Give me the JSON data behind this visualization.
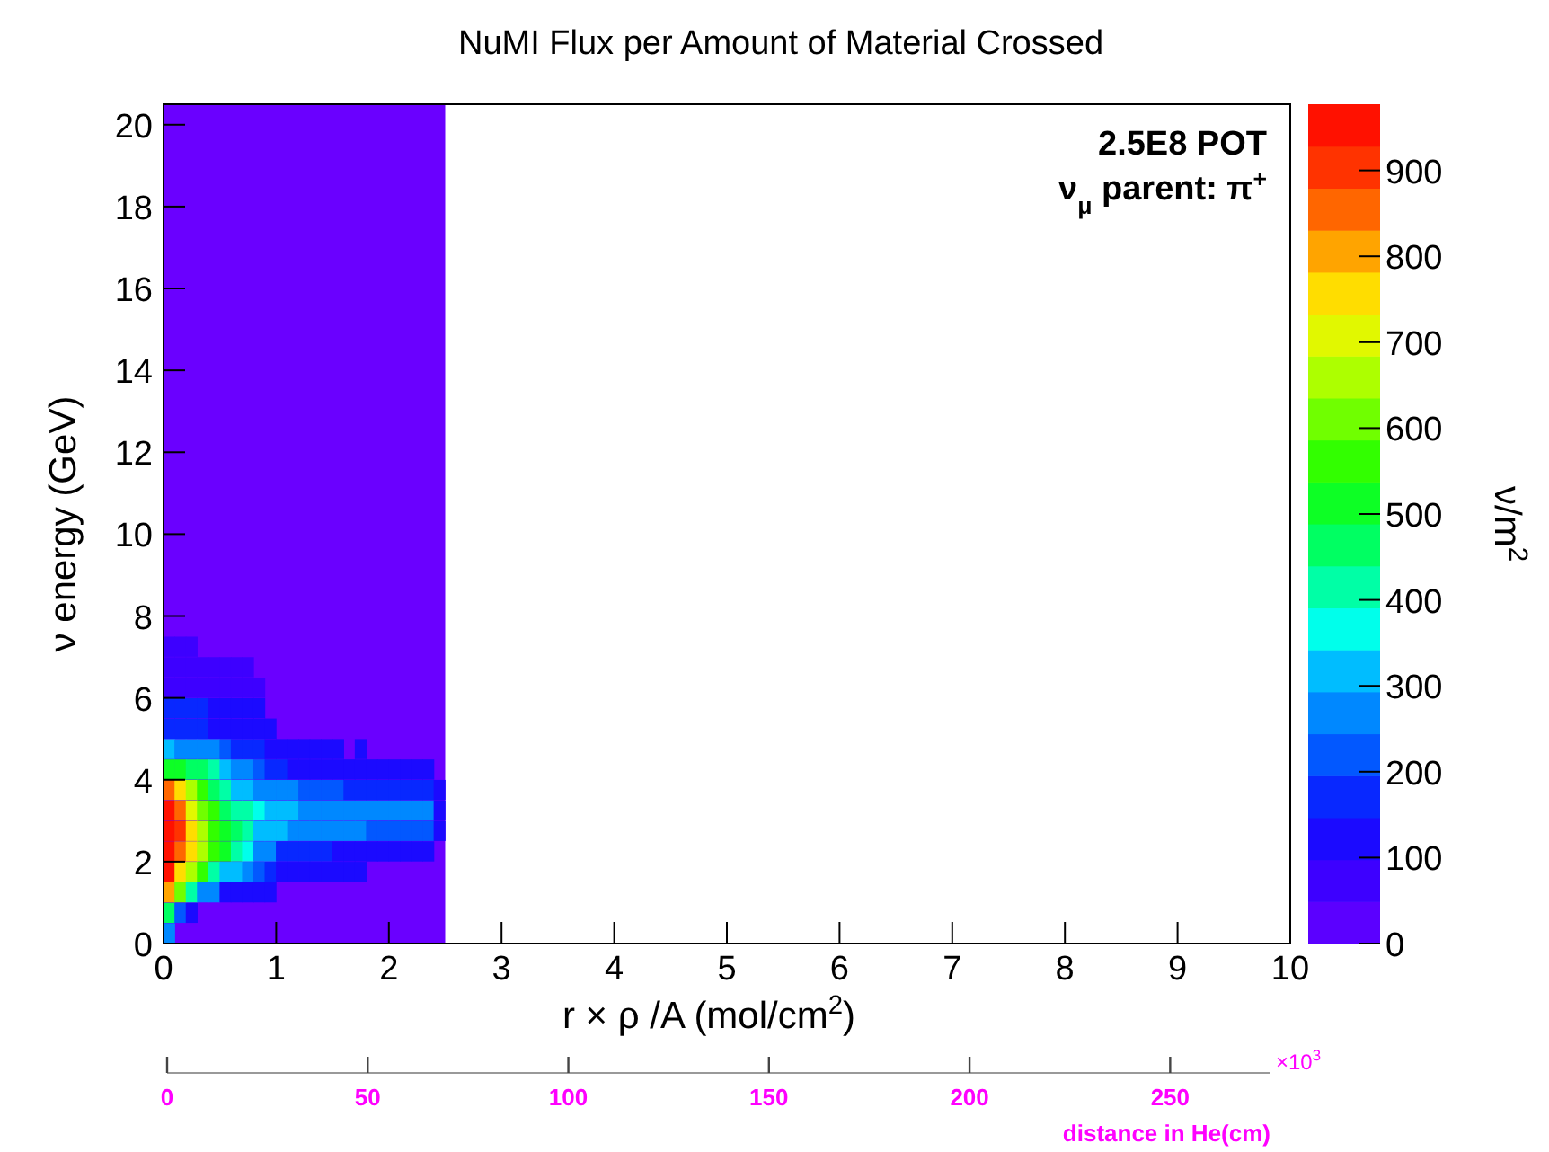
{
  "chart_data": {
    "type": "scatter",
    "title": "NuMI Flux per Amount of Material Crossed",
    "xlabel": "r × ρ /A (mol/cm$^{2}$)",
    "ylabel": "ν energy (GeV)",
    "clabel": "ν/m$^{2}$",
    "x2label": "distance in He(cm)",
    "annotations": [
      "2.5E8 POT",
      "ν$_{μ}$ parent: π$^{+}$",
      "×10$^{3}$"
    ],
    "marker": "square",
    "xlim": [
      0,
      10
    ],
    "xticks": [
      0,
      1,
      2,
      3,
      4,
      5,
      6,
      7,
      8,
      9,
      10
    ],
    "ylim": [
      0,
      20.5
    ],
    "yticks": [
      0,
      2,
      4,
      6,
      8,
      10,
      12,
      14,
      16,
      18,
      20
    ],
    "x2lim": [
      0,
      275
    ],
    "x2ticks": [
      0,
      50,
      100,
      150,
      200,
      250
    ],
    "clim": [
      0,
      977
    ],
    "cticks": [
      0,
      100,
      200,
      300,
      400,
      500,
      600,
      700,
      800,
      900
    ],
    "bands": [
      {
        "axis": "x",
        "from": 0,
        "to": 2.5,
        "color": "#6a00ff"
      }
    ],
    "x": [
      0.05,
      0.05,
      0.15,
      0.25,
      0.05,
      0.15,
      0.25,
      0.35,
      0.45,
      0.55,
      0.65,
      0.75,
      0.85,
      0.95,
      0.05,
      0.15,
      0.25,
      0.35,
      0.45,
      0.55,
      0.65,
      0.75,
      0.85,
      0.95,
      1.05,
      1.15,
      1.25,
      1.35,
      1.45,
      1.55,
      1.65,
      1.75,
      0.05,
      0.15,
      0.25,
      0.35,
      0.45,
      0.55,
      0.65,
      0.75,
      0.85,
      0.95,
      1.05,
      1.15,
      1.25,
      1.35,
      1.45,
      1.55,
      1.65,
      1.75,
      1.85,
      1.95,
      2.05,
      2.15,
      2.25,
      2.35,
      0.05,
      0.15,
      0.25,
      0.35,
      0.45,
      0.55,
      0.65,
      0.75,
      0.85,
      0.95,
      1.05,
      1.15,
      1.25,
      1.35,
      1.45,
      1.55,
      1.65,
      1.75,
      1.85,
      1.95,
      2.05,
      2.15,
      2.25,
      2.35,
      2.45,
      0.05,
      0.15,
      0.25,
      0.35,
      0.45,
      0.55,
      0.65,
      0.75,
      0.85,
      0.95,
      1.05,
      1.15,
      1.25,
      1.35,
      1.45,
      1.55,
      1.65,
      1.75,
      1.85,
      1.95,
      2.05,
      2.15,
      2.25,
      2.35,
      2.45,
      0.05,
      0.15,
      0.25,
      0.35,
      0.45,
      0.55,
      0.65,
      0.75,
      0.85,
      0.95,
      1.05,
      1.15,
      1.25,
      1.35,
      1.45,
      1.55,
      1.65,
      1.75,
      1.85,
      1.95,
      2.05,
      2.15,
      2.25,
      2.35,
      2.45,
      0.05,
      0.15,
      0.25,
      0.35,
      0.45,
      0.55,
      0.65,
      0.75,
      0.85,
      0.95,
      1.05,
      1.15,
      1.25,
      1.35,
      1.45,
      1.55,
      1.65,
      1.75,
      1.85,
      1.95,
      2.05,
      2.15,
      2.25,
      2.35,
      0.05,
      0.15,
      0.25,
      0.35,
      0.45,
      0.55,
      0.65,
      0.75,
      0.85,
      0.95,
      1.05,
      1.15,
      1.25,
      1.35,
      1.45,
      1.55,
      1.75,
      0.05,
      0.15,
      0.25,
      0.35,
      0.45,
      0.55,
      0.65,
      0.75,
      0.85,
      0.95,
      0.05,
      0.15,
      0.25,
      0.35,
      0.45,
      0.55,
      0.65,
      0.75,
      0.85,
      0.05,
      0.15,
      0.25,
      0.35,
      0.45,
      0.55,
      0.65,
      0.75,
      0.85,
      0.05,
      0.15,
      0.25,
      0.35,
      0.45,
      0.55,
      0.65,
      0.75,
      0.05,
      0.15,
      0.25
    ],
    "values": [
      0.25,
      0.75,
      0.75,
      0.75,
      1.25,
      1.25,
      1.25,
      1.25,
      1.25,
      1.25,
      1.25,
      1.25,
      1.25,
      1.25,
      1.75,
      1.75,
      1.75,
      1.75,
      1.75,
      1.75,
      1.75,
      1.75,
      1.75,
      1.75,
      1.75,
      1.75,
      1.75,
      1.75,
      1.75,
      1.75,
      1.75,
      1.75,
      2.25,
      2.25,
      2.25,
      2.25,
      2.25,
      2.25,
      2.25,
      2.25,
      2.25,
      2.25,
      2.25,
      2.25,
      2.25,
      2.25,
      2.25,
      2.25,
      2.25,
      2.25,
      2.25,
      2.25,
      2.25,
      2.25,
      2.25,
      2.25,
      2.75,
      2.75,
      2.75,
      2.75,
      2.75,
      2.75,
      2.75,
      2.75,
      2.75,
      2.75,
      2.75,
      2.75,
      2.75,
      2.75,
      2.75,
      2.75,
      2.75,
      2.75,
      2.75,
      2.75,
      2.75,
      2.75,
      2.75,
      2.75,
      2.75,
      3.25,
      3.25,
      3.25,
      3.25,
      3.25,
      3.25,
      3.25,
      3.25,
      3.25,
      3.25,
      3.25,
      3.25,
      3.25,
      3.25,
      3.25,
      3.25,
      3.25,
      3.25,
      3.25,
      3.25,
      3.25,
      3.25,
      3.25,
      3.25,
      3.25,
      3.75,
      3.75,
      3.75,
      3.75,
      3.75,
      3.75,
      3.75,
      3.75,
      3.75,
      3.75,
      3.75,
      3.75,
      3.75,
      3.75,
      3.75,
      3.75,
      3.75,
      3.75,
      3.75,
      3.75,
      3.75,
      3.75,
      3.75,
      3.75,
      3.75,
      4.25,
      4.25,
      4.25,
      4.25,
      4.25,
      4.25,
      4.25,
      4.25,
      4.25,
      4.25,
      4.25,
      4.25,
      4.25,
      4.25,
      4.25,
      4.25,
      4.25,
      4.25,
      4.25,
      4.25,
      4.25,
      4.25,
      4.25,
      4.25,
      4.75,
      4.75,
      4.75,
      4.75,
      4.75,
      4.75,
      4.75,
      4.75,
      4.75,
      4.75,
      4.75,
      4.75,
      4.75,
      4.75,
      4.75,
      4.75,
      4.75,
      5.25,
      5.25,
      5.25,
      5.25,
      5.25,
      5.25,
      5.25,
      5.25,
      5.25,
      5.25,
      5.75,
      5.75,
      5.75,
      5.75,
      5.75,
      5.75,
      5.75,
      5.75,
      5.75,
      6.25,
      6.25,
      6.25,
      6.25,
      6.25,
      6.25,
      6.25,
      6.25,
      6.25,
      6.75,
      6.75,
      6.75,
      6.75,
      6.75,
      6.75,
      6.75,
      6.75,
      7.25,
      7.25,
      7.25
    ],
    "cvalues": [
      270,
      480,
      230,
      100,
      820,
      620,
      430,
      280,
      250,
      110,
      110,
      110,
      110,
      110,
      940,
      760,
      680,
      560,
      420,
      330,
      330,
      250,
      230,
      150,
      130,
      130,
      130,
      110,
      110,
      110,
      110,
      110,
      960,
      860,
      750,
      650,
      570,
      530,
      430,
      380,
      260,
      260,
      180,
      180,
      150,
      150,
      150,
      130,
      130,
      130,
      130,
      130,
      130,
      130,
      130,
      130,
      950,
      900,
      770,
      640,
      560,
      520,
      470,
      420,
      330,
      330,
      330,
      270,
      260,
      260,
      260,
      260,
      260,
      260,
      200,
      200,
      200,
      200,
      200,
      200,
      130,
      960,
      870,
      700,
      600,
      560,
      470,
      420,
      400,
      350,
      330,
      310,
      300,
      270,
      270,
      270,
      270,
      270,
      270,
      270,
      270,
      270,
      270,
      270,
      270,
      130,
      840,
      760,
      680,
      560,
      440,
      420,
      340,
      320,
      270,
      270,
      250,
      250,
      200,
      200,
      200,
      200,
      150,
      150,
      150,
      150,
      150,
      150,
      150,
      150,
      130,
      520,
      500,
      480,
      450,
      420,
      330,
      280,
      260,
      200,
      180,
      180,
      130,
      130,
      130,
      130,
      130,
      130,
      130,
      130,
      120,
      120,
      120,
      120,
      120,
      320,
      280,
      280,
      280,
      280,
      220,
      150,
      150,
      150,
      110,
      110,
      110,
      110,
      110,
      110,
      110,
      110,
      160,
      160,
      160,
      160,
      130,
      130,
      110,
      110,
      110,
      110,
      150,
      150,
      150,
      150,
      100,
      100,
      100,
      100,
      100,
      90,
      90,
      90,
      90,
      90,
      90,
      90,
      90,
      90,
      80,
      80,
      80,
      80,
      80,
      80,
      80,
      80,
      70,
      70,
      70
    ]
  }
}
